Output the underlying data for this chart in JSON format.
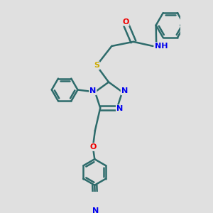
{
  "background_color": "#e0e0e0",
  "bond_color": "#2d6b6b",
  "bond_width": 1.8,
  "atom_colors": {
    "N": "#0000ee",
    "O": "#ee0000",
    "S": "#ccaa00",
    "C": "#2d6b6b",
    "H": "#2d6b6b",
    "CN": "#2d6b6b"
  },
  "figure_size": [
    3.0,
    3.0
  ],
  "dpi": 100,
  "xlim": [
    -1.6,
    1.8
  ],
  "ylim": [
    -2.2,
    2.2
  ]
}
